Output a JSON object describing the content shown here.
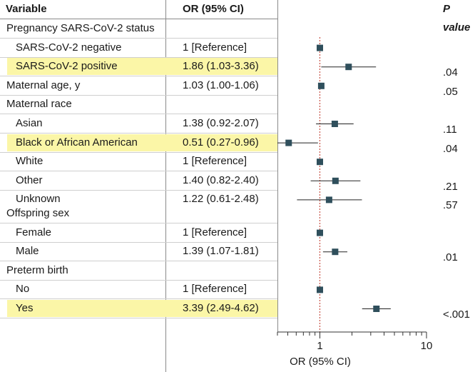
{
  "headers": {
    "variable": "Variable",
    "or": "OR (95% CI)",
    "p": "P value"
  },
  "rows": [
    {
      "label": "Pregnancy SARS-CoV-2 status",
      "or": "",
      "p": "",
      "indent": false,
      "highlight": false
    },
    {
      "label": "SARS-CoV-2 negative",
      "or": "1 [Reference]",
      "p": "",
      "indent": true,
      "highlight": false
    },
    {
      "label": "SARS-CoV-2 positive",
      "or": "1.86 (1.03-3.36)",
      "p": ".04",
      "indent": true,
      "highlight": true
    },
    {
      "label": "Maternal age, y",
      "or": "1.03 (1.00-1.06)",
      "p": ".05",
      "indent": false,
      "highlight": false
    },
    {
      "label": "Maternal race",
      "or": "",
      "p": "",
      "indent": false,
      "highlight": false
    },
    {
      "label": "Asian",
      "or": "1.38 (0.92-2.07)",
      "p": ".11",
      "indent": true,
      "highlight": false
    },
    {
      "label": "Black or African American",
      "or": "0.51 (0.27-0.96)",
      "p": ".04",
      "indent": true,
      "highlight": true
    },
    {
      "label": "White",
      "or": "1 [Reference]",
      "p": "",
      "indent": true,
      "highlight": false
    },
    {
      "label": "Other",
      "or": "1.40 (0.82-2.40)",
      "p": ".21",
      "indent": true,
      "highlight": false
    },
    {
      "label": "Unknown",
      "or": "1.22 (0.61-2.48)",
      "p": ".57",
      "indent": true,
      "highlight": false
    },
    {
      "label": "Offspring sex",
      "or": "",
      "p": "",
      "indent": false,
      "highlight": false
    },
    {
      "label": "Female",
      "or": "1 [Reference]",
      "p": "",
      "indent": true,
      "highlight": false
    },
    {
      "label": "Male",
      "or": "1.39 (1.07-1.81)",
      "p": ".01",
      "indent": true,
      "highlight": false
    },
    {
      "label": "Preterm birth",
      "or": "",
      "p": "",
      "indent": false,
      "highlight": false
    },
    {
      "label": "No",
      "or": "1 [Reference]",
      "p": "",
      "indent": true,
      "highlight": false
    },
    {
      "label": "Yes",
      "or": "3.39 (2.49-4.62)",
      "p": "<.001",
      "indent": true,
      "highlight": true
    }
  ],
  "chart_data": {
    "type": "forest",
    "xlabel": "OR (95% CI)",
    "xscale": "log",
    "xlim": [
      0.4,
      10
    ],
    "xticks": [
      1,
      10
    ],
    "xtick_labels": [
      "1",
      "10"
    ],
    "reference_line": 1,
    "points": [
      {
        "label": "SARS-CoV-2 negative",
        "or": 1,
        "lo": 1,
        "hi": 1
      },
      {
        "label": "SARS-CoV-2 positive",
        "or": 1.86,
        "lo": 1.03,
        "hi": 3.36
      },
      {
        "label": "Maternal age, y",
        "or": 1.03,
        "lo": 1.0,
        "hi": 1.06
      },
      {
        "label": "Asian",
        "or": 1.38,
        "lo": 0.92,
        "hi": 2.07
      },
      {
        "label": "Black or African American",
        "or": 0.51,
        "lo": 0.27,
        "hi": 0.96
      },
      {
        "label": "White",
        "or": 1,
        "lo": 1,
        "hi": 1
      },
      {
        "label": "Other",
        "or": 1.4,
        "lo": 0.82,
        "hi": 2.4
      },
      {
        "label": "Unknown",
        "or": 1.22,
        "lo": 0.61,
        "hi": 2.48
      },
      {
        "label": "Female",
        "or": 1,
        "lo": 1,
        "hi": 1
      },
      {
        "label": "Male",
        "or": 1.39,
        "lo": 1.07,
        "hi": 1.81
      },
      {
        "label": "No",
        "or": 1,
        "lo": 1,
        "hi": 1
      },
      {
        "label": "Yes",
        "or": 3.39,
        "lo": 2.49,
        "hi": 4.62
      }
    ],
    "colors": {
      "marker": "#2f4f5c",
      "reference_line": "#c0392b",
      "highlight": "#fbf6a7"
    }
  }
}
